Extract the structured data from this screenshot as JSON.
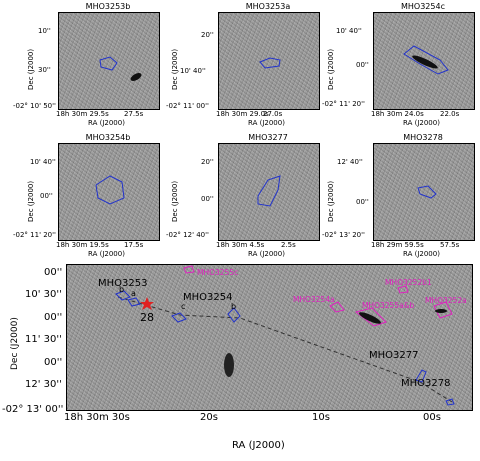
{
  "panels": [
    {
      "title": "MHO3253b",
      "ra_ticks": [
        "18h 30m 29.5s",
        "27.5s"
      ],
      "dec_ticks": [
        "10''",
        "30''",
        "-02° 10' 50''"
      ],
      "ra_label": "RA (J2000)",
      "dec_label": "Dec (J2000)"
    },
    {
      "title": "MHO3253a",
      "ra_ticks": [
        "18h 30m 29.0s",
        "27.0s"
      ],
      "dec_ticks": [
        "20''",
        "10' 40''",
        "-02° 11' 00''"
      ],
      "ra_label": "RA (J2000)",
      "dec_label": "Dec (J2000)"
    },
    {
      "title": "MHO3254c",
      "ra_ticks": [
        "18h 30m 24.0s",
        "22.0s"
      ],
      "dec_ticks": [
        "10' 40''",
        "00''",
        "-02° 11' 20''"
      ],
      "ra_label": "RA (J2000)",
      "dec_label": "Dec (J2000)"
    },
    {
      "title": "MHO3254b",
      "ra_ticks": [
        "18h 30m 19.5s",
        "17.5s"
      ],
      "dec_ticks": [
        "10' 40''",
        "00''",
        "-02° 11' 20''"
      ],
      "ra_label": "RA (J2000)",
      "dec_label": "Dec (J2000)"
    },
    {
      "title": "MHO3277",
      "ra_ticks": [
        "18h 30m 4.5s",
        "2.5s"
      ],
      "dec_ticks": [
        "20''",
        "00''",
        "-02° 12' 40''"
      ],
      "ra_label": "RA (J2000)",
      "dec_label": "Dec (J2000)"
    },
    {
      "title": "MHO3278",
      "ra_ticks": [
        "18h 29m 59.5s",
        "57.5s"
      ],
      "dec_ticks": [
        "12' 40''",
        "00''",
        "-02° 13' 20''"
      ],
      "ra_label": "RA (J2000)",
      "dec_label": "Dec (J2000)"
    }
  ],
  "main": {
    "ra_label": "RA (J2000)",
    "dec_label": "Dec (J2000)",
    "ra_ticks": [
      "18h 30m 30s",
      "20s",
      "10s",
      "00s"
    ],
    "dec_ticks": [
      "00''",
      "10' 30''",
      "00''",
      "11' 30''",
      "00''",
      "12' 30''",
      "-02° 13' 00''"
    ],
    "labels": {
      "mho3253": "MHO3253",
      "b": "b",
      "a": "a",
      "star_id": "28",
      "mho3254": "MHO3254",
      "c": "c",
      "b2": "b",
      "mho3277": "MHO3277",
      "mho3278": "MHO3278"
    },
    "magenta_labels": {
      "mho3255c": "MHO3255c",
      "mho3252b1": "MHO3252b1",
      "mho3254a": "MHO3254a",
      "mho3255ab": "MHO3255a&b",
      "mho3252a": "MHO3252a"
    },
    "colors": {
      "contour": "#2233cc",
      "magenta": "#e020c0",
      "star": "#e02020"
    }
  }
}
